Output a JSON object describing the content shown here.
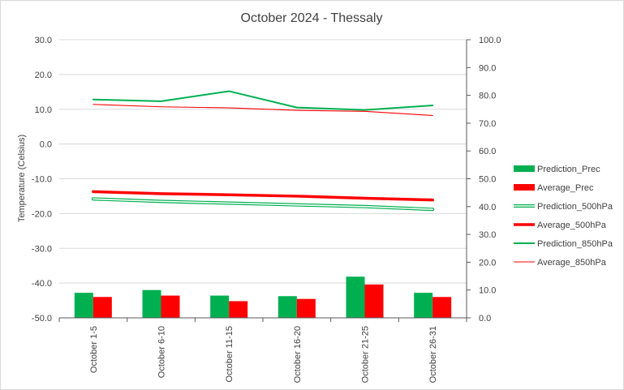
{
  "chart_data": {
    "type": "bar",
    "title": "October 2024 - Thessaly",
    "ylabel": "Temperature  (Celsius)",
    "ylabel_right": "",
    "xlabel": "",
    "categories": [
      "October 1-5",
      "October 6-10",
      "October 11-15",
      "October 16-20",
      "October 21-25",
      "October 26-31"
    ],
    "ylim": [
      -50,
      30
    ],
    "ylim_right": [
      0,
      100
    ],
    "y_ticks": [
      "30.0",
      "20.0",
      "10.0",
      "0.0",
      "-10.0",
      "-20.0",
      "-30.0",
      "-40.0",
      "-50.0"
    ],
    "y_right_ticks": [
      "100.0",
      "90.0",
      "80.0",
      "70.0",
      "60.0",
      "50.0",
      "40.0",
      "30.0",
      "20.0",
      "10.0",
      "0.0"
    ],
    "grid": "horizontal",
    "legend_position": "right",
    "series": [
      {
        "name": "Prediction_Prec",
        "kind": "bar",
        "axis": "right",
        "color": "#00b050",
        "values": [
          9.0,
          10.0,
          8.0,
          7.8,
          14.8,
          9.0
        ]
      },
      {
        "name": "Average_Prec",
        "kind": "bar",
        "axis": "right",
        "color": "#ff0000",
        "values": [
          7.5,
          8.0,
          6.0,
          6.8,
          12.0,
          7.5
        ]
      },
      {
        "name": "Prediction_500hPa",
        "kind": "line",
        "style": "double",
        "axis": "left",
        "color": "#00b050",
        "values": [
          -15.8,
          -16.5,
          -17.0,
          -17.5,
          -18.0,
          -18.8
        ]
      },
      {
        "name": "Average_500hPa",
        "kind": "line",
        "style": "thick",
        "axis": "left",
        "color": "#ff0000",
        "values": [
          -13.7,
          -14.3,
          -14.6,
          -15.0,
          -15.6,
          -16.1
        ]
      },
      {
        "name": "Prediction_850hPa",
        "kind": "line",
        "style": "medium",
        "axis": "left",
        "color": "#00b050",
        "values": [
          12.8,
          12.3,
          15.2,
          10.5,
          9.8,
          11.1
        ]
      },
      {
        "name": "Average_850hPa",
        "kind": "line",
        "style": "thin",
        "axis": "left",
        "color": "#ff0000",
        "values": [
          11.4,
          10.7,
          10.4,
          9.7,
          9.4,
          8.2
        ]
      }
    ]
  }
}
